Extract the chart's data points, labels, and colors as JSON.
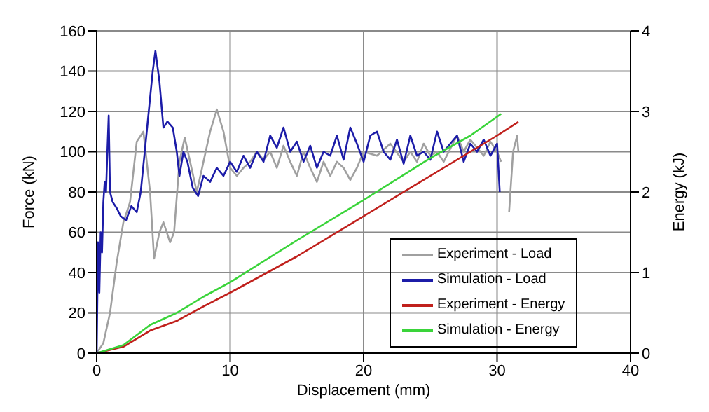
{
  "chart_data": {
    "type": "line",
    "xlabel": "Displacement (mm)",
    "ylabel": "Force (kN)",
    "y2label": "Energy (kJ)",
    "xlim": [
      0,
      40
    ],
    "xticks": [
      0,
      10,
      20,
      30,
      40
    ],
    "ylim": [
      0,
      160
    ],
    "yticks": [
      0,
      20,
      40,
      60,
      80,
      100,
      120,
      140,
      160
    ],
    "y2lim": [
      0,
      4
    ],
    "y2ticks": [
      0,
      1,
      2,
      3,
      4
    ],
    "grid": true,
    "legend": "bottom right",
    "marker": "none",
    "line_style": "solid",
    "series": [
      {
        "name": "Experiment - Load",
        "color": "#a0a0a0",
        "x": [
          0,
          0.5,
          1,
          1.5,
          2,
          2.5,
          3,
          3.5,
          4,
          4.3,
          4.7,
          5,
          5.5,
          5.8,
          6.2,
          6.6,
          7,
          7.5,
          8,
          8.5,
          9,
          9.5,
          10,
          10.5,
          11,
          11.5,
          12,
          12.5,
          13,
          13.5,
          14,
          14.5,
          15,
          15.5,
          16,
          16.5,
          17,
          17.5,
          18,
          18.5,
          19,
          19.5,
          20,
          21,
          22,
          23,
          23.5,
          24,
          24.5,
          25,
          25.5,
          26,
          27,
          27.5,
          28,
          29,
          29.5,
          30,
          30.3,
          30.6,
          30.9,
          31.2,
          31.5,
          31.6
        ],
        "values": [
          0,
          5,
          20,
          45,
          65,
          75,
          105,
          110,
          80,
          47,
          60,
          65,
          55,
          60,
          95,
          107,
          95,
          80,
          95,
          110,
          121,
          110,
          92,
          88,
          92,
          95,
          100,
          96,
          100,
          92,
          103,
          95,
          88,
          100,
          92,
          85,
          95,
          88,
          95,
          92,
          86,
          92,
          100,
          98,
          104,
          95,
          100,
          95,
          104,
          98,
          100,
          95,
          108,
          100,
          106,
          98,
          105,
          100,
          95,
          null,
          70,
          100,
          108,
          100
        ]
      },
      {
        "name": "Simulation - Load",
        "color": "#1c1ca8",
        "x": [
          0,
          0.1,
          0.2,
          0.3,
          0.4,
          0.5,
          0.6,
          0.7,
          0.8,
          0.9,
          1,
          1.2,
          1.5,
          1.8,
          2.2,
          2.6,
          3,
          3.3,
          3.6,
          3.9,
          4.2,
          4.4,
          4.7,
          5,
          5.3,
          5.7,
          6,
          6.2,
          6.5,
          6.8,
          7.2,
          7.6,
          8,
          8.5,
          9,
          9.5,
          10,
          10.5,
          11,
          11.5,
          12,
          12.5,
          13,
          13.5,
          14,
          14.5,
          15,
          15.5,
          16,
          16.5,
          17,
          17.5,
          18,
          18.5,
          19,
          19.5,
          20,
          20.5,
          21,
          21.5,
          22,
          22.5,
          23,
          23.5,
          24,
          24.5,
          25,
          25.5,
          26,
          26.5,
          27,
          27.5,
          28,
          28.5,
          29,
          29.5,
          30,
          30.2
        ],
        "values": [
          0,
          55,
          30,
          60,
          50,
          75,
          85,
          80,
          100,
          118,
          80,
          75,
          72,
          68,
          66,
          73,
          70,
          80,
          100,
          120,
          140,
          150,
          135,
          112,
          115,
          112,
          100,
          88,
          100,
          95,
          82,
          78,
          88,
          85,
          92,
          88,
          95,
          90,
          98,
          92,
          100,
          95,
          108,
          102,
          112,
          100,
          105,
          95,
          103,
          92,
          100,
          98,
          108,
          96,
          112,
          104,
          95,
          108,
          110,
          100,
          96,
          106,
          94,
          108,
          98,
          100,
          96,
          110,
          100,
          104,
          108,
          95,
          104,
          100,
          106,
          98,
          104,
          80
        ]
      },
      {
        "name": "Experiment - Energy",
        "color": "#c0201c",
        "axis": "y2",
        "x": [
          0,
          2,
          4,
          6,
          8,
          10,
          15,
          20,
          25,
          30,
          31.6
        ],
        "values": [
          0,
          0.08,
          0.28,
          0.4,
          0.58,
          0.75,
          1.2,
          1.7,
          2.2,
          2.7,
          2.87
        ]
      },
      {
        "name": "Simulation - Energy",
        "color": "#3ad43a",
        "axis": "y2",
        "x": [
          0,
          2,
          4,
          6,
          8,
          10,
          15,
          20,
          25,
          28,
          30.3
        ],
        "values": [
          0,
          0.1,
          0.35,
          0.5,
          0.7,
          0.88,
          1.4,
          1.9,
          2.42,
          2.7,
          2.97
        ]
      }
    ]
  }
}
